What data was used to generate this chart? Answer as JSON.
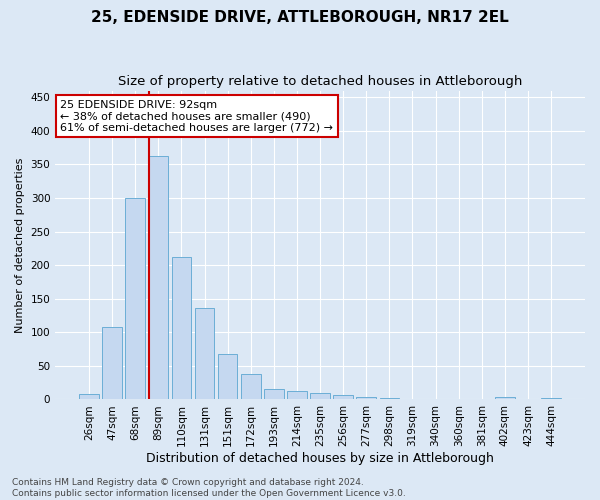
{
  "title1": "25, EDENSIDE DRIVE, ATTLEBOROUGH, NR17 2EL",
  "title2": "Size of property relative to detached houses in Attleborough",
  "xlabel": "Distribution of detached houses by size in Attleborough",
  "ylabel": "Number of detached properties",
  "footer1": "Contains HM Land Registry data © Crown copyright and database right 2024.",
  "footer2": "Contains public sector information licensed under the Open Government Licence v3.0.",
  "annotation_line1": "25 EDENSIDE DRIVE: 92sqm",
  "annotation_line2": "← 38% of detached houses are smaller (490)",
  "annotation_line3": "61% of semi-detached houses are larger (772) →",
  "bar_labels": [
    "26sqm",
    "47sqm",
    "68sqm",
    "89sqm",
    "110sqm",
    "131sqm",
    "151sqm",
    "172sqm",
    "193sqm",
    "214sqm",
    "235sqm",
    "256sqm",
    "277sqm",
    "298sqm",
    "319sqm",
    "340sqm",
    "360sqm",
    "381sqm",
    "402sqm",
    "423sqm",
    "444sqm"
  ],
  "bar_values": [
    8,
    108,
    300,
    362,
    212,
    136,
    68,
    38,
    15,
    13,
    10,
    6,
    3,
    2,
    0,
    0,
    0,
    0,
    3,
    0,
    2
  ],
  "bar_color": "#c5d8f0",
  "bar_edge_color": "#6baed6",
  "red_line_x": 3.0,
  "vline_color": "#cc0000",
  "background_color": "#dce8f5",
  "ylim": [
    0,
    460
  ],
  "yticks": [
    0,
    50,
    100,
    150,
    200,
    250,
    300,
    350,
    400,
    450
  ],
  "annotation_box_facecolor": "white",
  "annotation_box_edgecolor": "#cc0000",
  "grid_color": "white",
  "title1_fontsize": 11,
  "title2_fontsize": 9.5,
  "ylabel_fontsize": 8,
  "xlabel_fontsize": 9,
  "tick_fontsize": 7.5,
  "footer_fontsize": 6.5,
  "annotation_fontsize": 8
}
